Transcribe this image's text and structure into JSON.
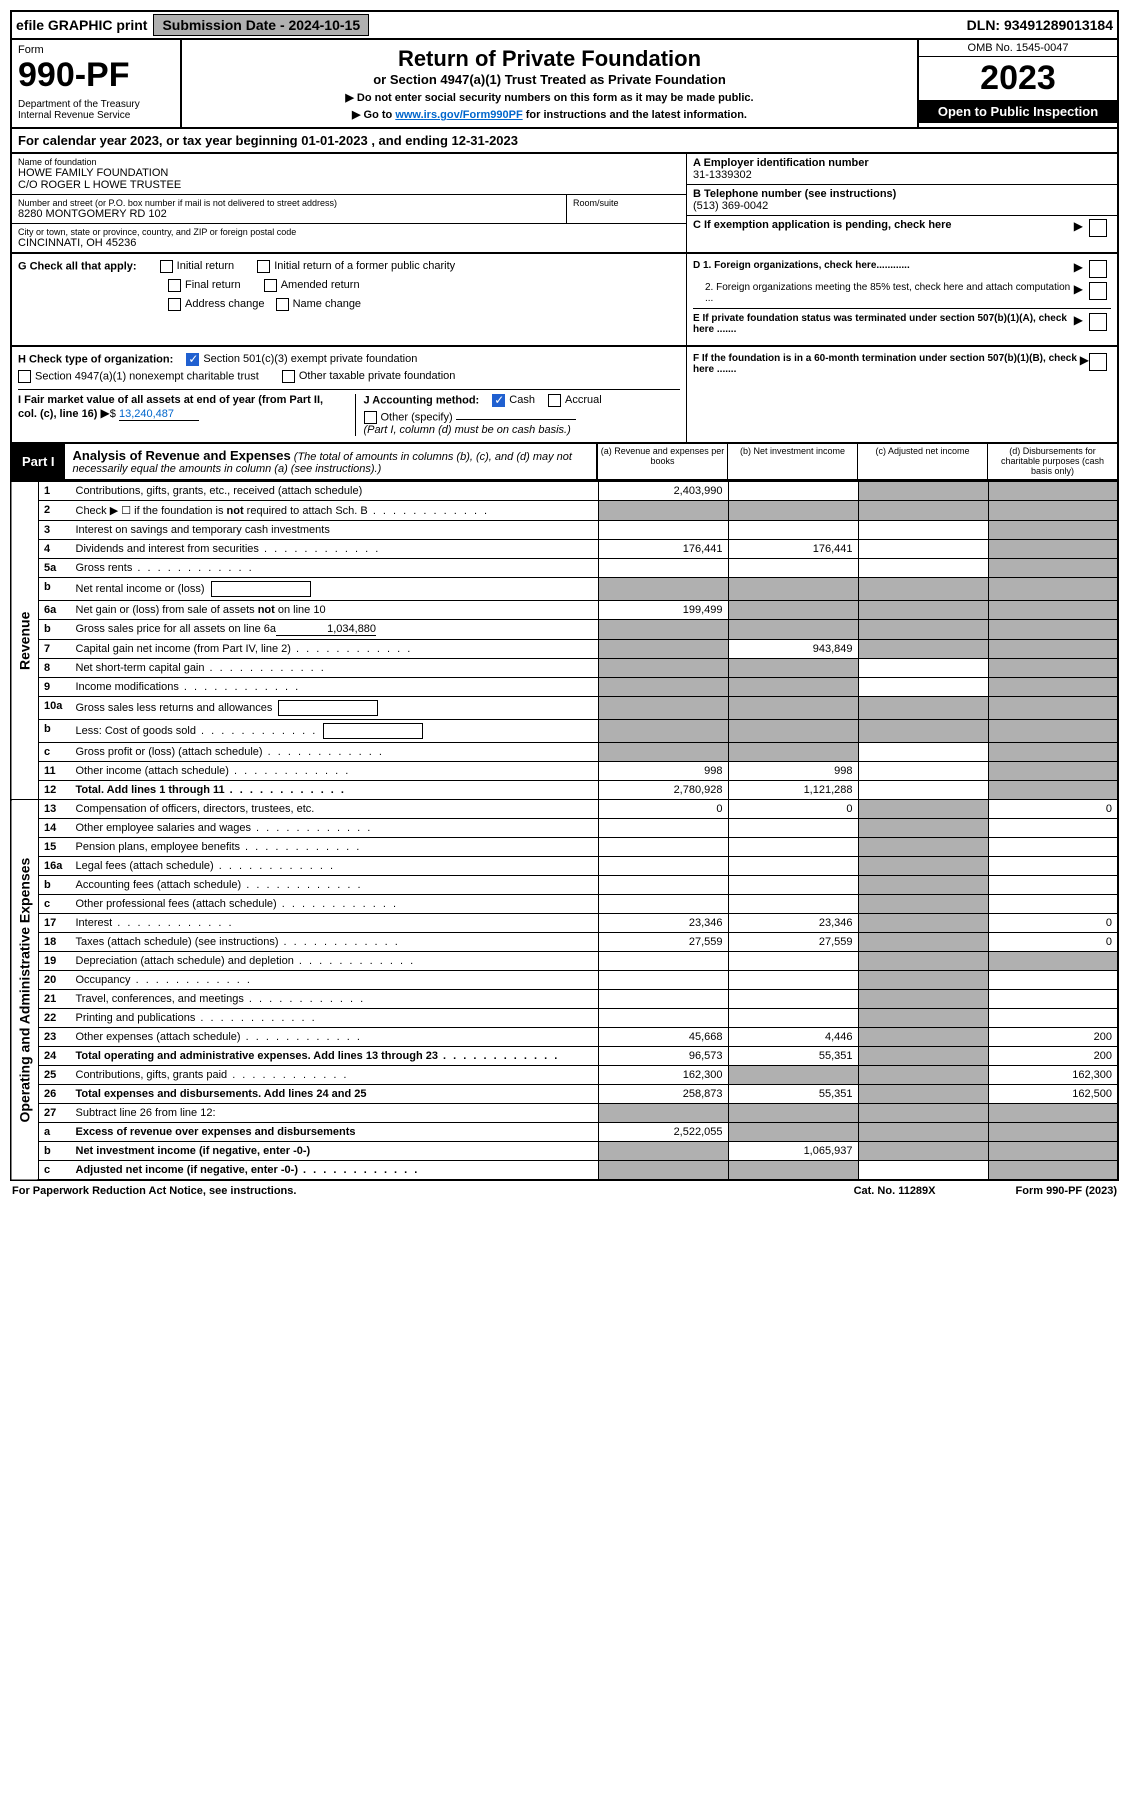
{
  "topbar": {
    "efile": "efile GRAPHIC print",
    "sub_label": "Submission Date - 2024-10-15",
    "dln": "DLN: 93491289013184"
  },
  "header": {
    "form_label": "Form",
    "form_num": "990-PF",
    "dept": "Department of the Treasury\nInternal Revenue Service",
    "title1": "Return of Private Foundation",
    "title2": "or Section 4947(a)(1) Trust Treated as Private Foundation",
    "sub1": "▶ Do not enter social security numbers on this form as it may be made public.",
    "sub2_pre": "▶ Go to ",
    "sub2_link": "www.irs.gov/Form990PF",
    "sub2_post": " for instructions and the latest information.",
    "omb": "OMB No. 1545-0047",
    "year": "2023",
    "open": "Open to Public Inspection"
  },
  "cal_year": "For calendar year 2023, or tax year beginning 01-01-2023                         , and ending 12-31-2023",
  "info": {
    "name_label": "Name of foundation",
    "name1": "HOWE FAMILY FOUNDATION",
    "name2": "C/O ROGER L HOWE TRUSTEE",
    "street_label": "Number and street (or P.O. box number if mail is not delivered to street address)",
    "street": "8280 MONTGOMERY RD 102",
    "room_label": "Room/suite",
    "city_label": "City or town, state or province, country, and ZIP or foreign postal code",
    "city": "CINCINNATI, OH  45236",
    "a_label": "A Employer identification number",
    "a_val": "31-1339302",
    "b_label": "B Telephone number (see instructions)",
    "b_val": "(513) 369-0042",
    "c_label": "C If exemption application is pending, check here"
  },
  "g": {
    "label": "G Check all that apply:",
    "opts": [
      "Initial return",
      "Initial return of a former public charity",
      "Final return",
      "Amended return",
      "Address change",
      "Name change"
    ],
    "d1": "D 1. Foreign organizations, check here............",
    "d2": "2. Foreign organizations meeting the 85% test, check here and attach computation ...",
    "e": "E  If private foundation status was terminated under section 507(b)(1)(A), check here ......."
  },
  "h": {
    "label": "H Check type of organization:",
    "opt1": "Section 501(c)(3) exempt private foundation",
    "opt2": "Section 4947(a)(1) nonexempt charitable trust",
    "opt3": "Other taxable private foundation",
    "i_label": "I Fair market value of all assets at end of year (from Part II, col. (c), line 16)",
    "i_val": "13,240,487",
    "j_label": "J Accounting method:",
    "j_opts": [
      "Cash",
      "Accrual"
    ],
    "j_other": "Other (specify)",
    "j_note": "(Part I, column (d) must be on cash basis.)",
    "f": "F  If the foundation is in a 60-month termination under section 507(b)(1)(B), check here ......."
  },
  "part1": {
    "label": "Part I",
    "title": "Analysis of Revenue and Expenses",
    "note": "(The total of amounts in columns (b), (c), and (d) may not necessarily equal the amounts in column (a) (see instructions).)",
    "cols": [
      "(a)   Revenue and expenses per books",
      "(b)   Net investment income",
      "(c)   Adjusted net income",
      "(d)   Disbursements for charitable purposes (cash basis only)"
    ]
  },
  "sides": {
    "rev": "Revenue",
    "exp": "Operating and Administrative Expenses"
  },
  "rows": [
    {
      "n": "1",
      "d": "Contributions, gifts, grants, etc., received (attach schedule)",
      "a": "2,403,990",
      "b": "",
      "c": "s",
      "e": "s"
    },
    {
      "n": "2",
      "d": "Check ▶ ☐ if the foundation is not required to attach Sch. B",
      "dots": true,
      "a": "s",
      "b": "s",
      "c": "s",
      "e": "s"
    },
    {
      "n": "3",
      "d": "Interest on savings and temporary cash investments",
      "a": "",
      "b": "",
      "c": "",
      "e": "s"
    },
    {
      "n": "4",
      "d": "Dividends and interest from securities",
      "dots": true,
      "a": "176,441",
      "b": "176,441",
      "c": "",
      "e": "s"
    },
    {
      "n": "5a",
      "d": "Gross rents",
      "dots": true,
      "a": "",
      "b": "",
      "c": "",
      "e": "s"
    },
    {
      "n": "b",
      "d": "Net rental income or (loss)",
      "inline": true,
      "a": "s",
      "b": "s",
      "c": "s",
      "e": "s"
    },
    {
      "n": "6a",
      "d": "Net gain or (loss) from sale of assets not on line 10",
      "a": "199,499",
      "b": "s",
      "c": "s",
      "e": "s"
    },
    {
      "n": "b",
      "d": "Gross sales price for all assets on line 6a",
      "inlineval": "1,034,880",
      "a": "s",
      "b": "s",
      "c": "s",
      "e": "s"
    },
    {
      "n": "7",
      "d": "Capital gain net income (from Part IV, line 2)",
      "dots": true,
      "a": "s",
      "b": "943,849",
      "c": "s",
      "e": "s"
    },
    {
      "n": "8",
      "d": "Net short-term capital gain",
      "dots": true,
      "a": "s",
      "b": "s",
      "c": "",
      "e": "s"
    },
    {
      "n": "9",
      "d": "Income modifications",
      "dots": true,
      "a": "s",
      "b": "s",
      "c": "",
      "e": "s"
    },
    {
      "n": "10a",
      "d": "Gross sales less returns and allowances",
      "inline": true,
      "a": "s",
      "b": "s",
      "c": "s",
      "e": "s"
    },
    {
      "n": "b",
      "d": "Less: Cost of goods sold",
      "dots": true,
      "inline": true,
      "a": "s",
      "b": "s",
      "c": "s",
      "e": "s"
    },
    {
      "n": "c",
      "d": "Gross profit or (loss) (attach schedule)",
      "dots": true,
      "a": "s",
      "b": "s",
      "c": "",
      "e": "s"
    },
    {
      "n": "11",
      "d": "Other income (attach schedule)",
      "dots": true,
      "a": "998",
      "b": "998",
      "c": "",
      "e": "s"
    },
    {
      "n": "12",
      "d": "Total. Add lines 1 through 11",
      "dots": true,
      "bold": true,
      "a": "2,780,928",
      "b": "1,121,288",
      "c": "",
      "e": "s"
    },
    {
      "n": "13",
      "d": "Compensation of officers, directors, trustees, etc.",
      "a": "0",
      "b": "0",
      "c": "s",
      "e": "0"
    },
    {
      "n": "14",
      "d": "Other employee salaries and wages",
      "dots": true,
      "a": "",
      "b": "",
      "c": "s",
      "e": ""
    },
    {
      "n": "15",
      "d": "Pension plans, employee benefits",
      "dots": true,
      "a": "",
      "b": "",
      "c": "s",
      "e": ""
    },
    {
      "n": "16a",
      "d": "Legal fees (attach schedule)",
      "dots": true,
      "a": "",
      "b": "",
      "c": "s",
      "e": ""
    },
    {
      "n": "b",
      "d": "Accounting fees (attach schedule)",
      "dots": true,
      "a": "",
      "b": "",
      "c": "s",
      "e": ""
    },
    {
      "n": "c",
      "d": "Other professional fees (attach schedule)",
      "dots": true,
      "a": "",
      "b": "",
      "c": "s",
      "e": ""
    },
    {
      "n": "17",
      "d": "Interest",
      "dots": true,
      "a": "23,346",
      "b": "23,346",
      "c": "s",
      "e": "0"
    },
    {
      "n": "18",
      "d": "Taxes (attach schedule) (see instructions)",
      "dots": true,
      "a": "27,559",
      "b": "27,559",
      "c": "s",
      "e": "0"
    },
    {
      "n": "19",
      "d": "Depreciation (attach schedule) and depletion",
      "dots": true,
      "a": "",
      "b": "",
      "c": "s",
      "e": "s"
    },
    {
      "n": "20",
      "d": "Occupancy",
      "dots": true,
      "a": "",
      "b": "",
      "c": "s",
      "e": ""
    },
    {
      "n": "21",
      "d": "Travel, conferences, and meetings",
      "dots": true,
      "a": "",
      "b": "",
      "c": "s",
      "e": ""
    },
    {
      "n": "22",
      "d": "Printing and publications",
      "dots": true,
      "a": "",
      "b": "",
      "c": "s",
      "e": ""
    },
    {
      "n": "23",
      "d": "Other expenses (attach schedule)",
      "dots": true,
      "a": "45,668",
      "b": "4,446",
      "c": "s",
      "e": "200"
    },
    {
      "n": "24",
      "d": "Total operating and administrative expenses. Add lines 13 through 23",
      "dots": true,
      "bold": true,
      "a": "96,573",
      "b": "55,351",
      "c": "s",
      "e": "200"
    },
    {
      "n": "25",
      "d": "Contributions, gifts, grants paid",
      "dots": true,
      "a": "162,300",
      "b": "s",
      "c": "s",
      "e": "162,300"
    },
    {
      "n": "26",
      "d": "Total expenses and disbursements. Add lines 24 and 25",
      "bold": true,
      "a": "258,873",
      "b": "55,351",
      "c": "s",
      "e": "162,500"
    },
    {
      "n": "27",
      "d": "Subtract line 26 from line 12:",
      "a": "s",
      "b": "s",
      "c": "s",
      "e": "s"
    },
    {
      "n": "a",
      "d": "Excess of revenue over expenses and disbursements",
      "bold": true,
      "a": "2,522,055",
      "b": "s",
      "c": "s",
      "e": "s"
    },
    {
      "n": "b",
      "d": "Net investment income (if negative, enter -0-)",
      "bold": true,
      "a": "s",
      "b": "1,065,937",
      "c": "s",
      "e": "s"
    },
    {
      "n": "c",
      "d": "Adjusted net income (if negative, enter -0-)",
      "bold": true,
      "dots": true,
      "a": "s",
      "b": "s",
      "c": "",
      "e": "s"
    }
  ],
  "footer": {
    "left": "For Paperwork Reduction Act Notice, see instructions.",
    "mid": "Cat. No. 11289X",
    "right": "Form 990-PF (2023)"
  }
}
